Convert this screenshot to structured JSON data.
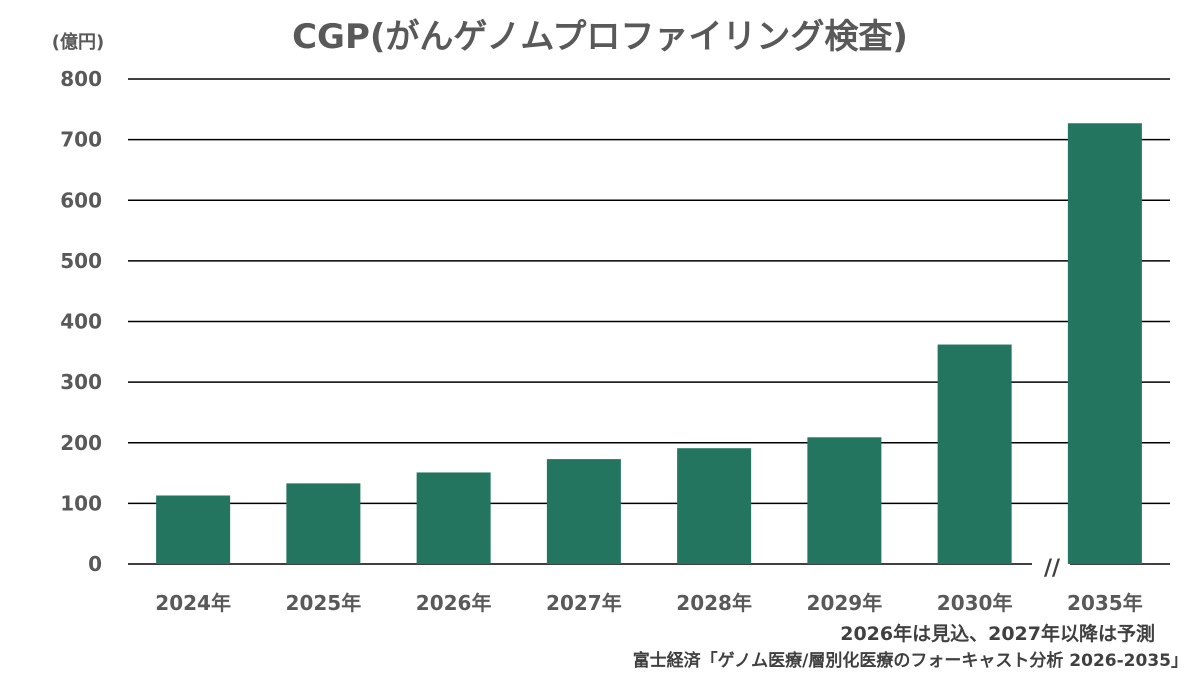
{
  "chart_data": {
    "type": "bar",
    "title": "CGP(がんゲノムプロファイリング検査)",
    "unit_label": "(億円)",
    "categories": [
      "2024年",
      "2025年",
      "2026年",
      "2027年",
      "2028年",
      "2029年",
      "2030年",
      "2035年"
    ],
    "values": [
      113,
      133,
      151,
      173,
      191,
      209,
      362,
      727
    ],
    "ylim": [
      0,
      800
    ],
    "yticks": [
      "0",
      "100",
      "200",
      "300",
      "400",
      "500",
      "600",
      "700",
      "800"
    ],
    "bar_color": "#237560",
    "grid": true,
    "axis_break_mark": "//",
    "note": "2026年は見込、2027年以降は予測",
    "source": "富士経済「ゲノム医療/層別化医療のフォーキャスト分析 2026-2035」"
  }
}
